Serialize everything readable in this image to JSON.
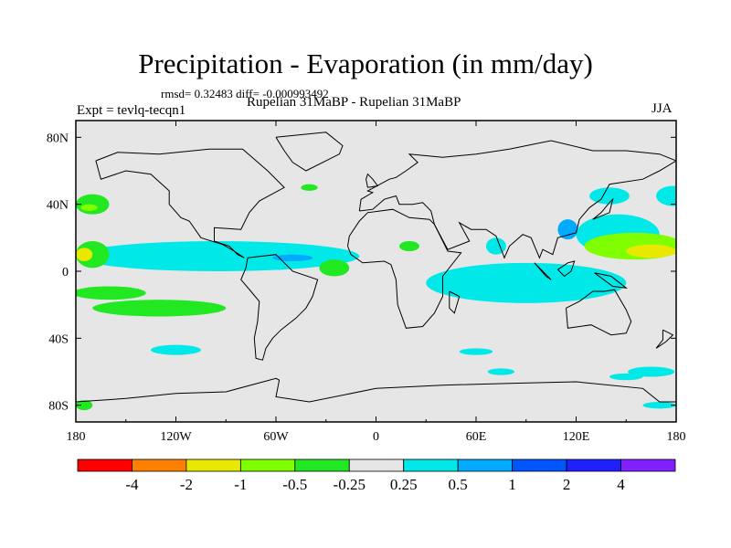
{
  "chart_data": {
    "type": "heatmap",
    "title": "Precipitation - Evaporation (in mm/day)",
    "stats_text": "rmsd= 0.32483 diff= -0.000993492",
    "left_label": "Expt = tevlq-tecqn1",
    "center_label": "Rupelian  31MaBP - Rupelian  31MaBP",
    "right_label": "JJA",
    "x_ticks": [
      "180",
      "120W",
      "60W",
      "0",
      "60E",
      "120E",
      "180"
    ],
    "x_tick_values": [
      -180,
      -120,
      -60,
      0,
      60,
      120,
      180
    ],
    "y_ticks": [
      "80N",
      "40N",
      "0",
      "40S",
      "80S"
    ],
    "y_tick_values": [
      80,
      40,
      0,
      -40,
      -80
    ],
    "xlim": [
      -180,
      180
    ],
    "ylim": [
      -90,
      90
    ],
    "colorbar": {
      "labels": [
        "-4",
        "-2",
        "-1",
        "-0.5",
        "-0.25",
        "0.25",
        "0.5",
        "1",
        "2",
        "4"
      ],
      "colors": [
        "#ff0000",
        "#ff8000",
        "#e8e800",
        "#80ff00",
        "#22e822",
        "#e6e6e6",
        "#00e8e8",
        "#00aaff",
        "#0055ff",
        "#2020ff",
        "#8020ff"
      ]
    },
    "regions": [
      {
        "name": "tropical-pacific-positive",
        "class": 8,
        "cx": -118,
        "cy": 10,
        "rx": 45,
        "ry": 4
      },
      {
        "name": "tropical-pacific-positive-outer",
        "class": 7,
        "cx": -112,
        "cy": 10,
        "rx": 60,
        "ry": 7
      },
      {
        "name": "tropical-pacific-positive-band",
        "class": 6,
        "cx": -95,
        "cy": 9,
        "rx": 85,
        "ry": 9
      },
      {
        "name": "tropical-atlantic-positive",
        "class": 6,
        "cx": -40,
        "cy": 8,
        "rx": 25,
        "ry": 4
      },
      {
        "name": "tropical-atlantic-weak",
        "class": 7,
        "cx": -50,
        "cy": 8,
        "rx": 12,
        "ry": 2
      },
      {
        "name": "indian-ocean-positive",
        "class": 8,
        "cx": 85,
        "cy": -6,
        "rx": 14,
        "ry": 5
      },
      {
        "name": "indian-ocean-positive-outer",
        "class": 7,
        "cx": 80,
        "cy": -5,
        "rx": 30,
        "ry": 8
      },
      {
        "name": "indian-ocean-band",
        "class": 6,
        "cx": 90,
        "cy": -7,
        "rx": 60,
        "ry": 12
      },
      {
        "name": "western-pacific-positive",
        "class": 7,
        "cx": 145,
        "cy": 25,
        "rx": 14,
        "ry": 6
      },
      {
        "name": "western-pacific-band",
        "class": 6,
        "cx": 145,
        "cy": 22,
        "rx": 25,
        "ry": 12
      },
      {
        "name": "north-pacific-negative",
        "class": 3,
        "cx": 155,
        "cy": 15,
        "rx": 30,
        "ry": 8
      },
      {
        "name": "north-pacific-negative-core",
        "class": 2,
        "cx": 165,
        "cy": 12,
        "rx": 15,
        "ry": 4
      },
      {
        "name": "eastern-pacific-negative",
        "class": 4,
        "cx": -170,
        "cy": 10,
        "rx": 10,
        "ry": 8
      },
      {
        "name": "eastern-pacific-negative-core",
        "class": 2,
        "cx": -175,
        "cy": 10,
        "rx": 5,
        "ry": 4
      },
      {
        "name": "south-pacific-negative",
        "class": 4,
        "cx": -130,
        "cy": -22,
        "rx": 40,
        "ry": 5
      },
      {
        "name": "south-pacific-negative-west",
        "class": 4,
        "cx": -160,
        "cy": -13,
        "rx": 22,
        "ry": 4
      },
      {
        "name": "south-atlantic-negative",
        "class": 4,
        "cx": -25,
        "cy": 2,
        "rx": 9,
        "ry": 5
      },
      {
        "name": "africa-negative",
        "class": 4,
        "cx": 20,
        "cy": 15,
        "rx": 6,
        "ry": 3
      },
      {
        "name": "north-atlantic-negative",
        "class": 4,
        "cx": -40,
        "cy": 50,
        "rx": 5,
        "ry": 2
      },
      {
        "name": "north-pacific-north-negative",
        "class": 4,
        "cx": -170,
        "cy": 40,
        "rx": 10,
        "ry": 6
      },
      {
        "name": "north-pacific-north-negative-core",
        "class": 3,
        "cx": -172,
        "cy": 38,
        "rx": 5,
        "ry": 2
      },
      {
        "name": "southern-ocean-positive-east",
        "class": 6,
        "cx": 165,
        "cy": -60,
        "rx": 14,
        "ry": 3
      },
      {
        "name": "southern-ocean-negative",
        "class": 4,
        "cx": -175,
        "cy": -80,
        "rx": 5,
        "ry": 3
      },
      {
        "name": "southern-ocean-positive",
        "class": 6,
        "cx": -120,
        "cy": -47,
        "rx": 15,
        "ry": 3
      },
      {
        "name": "southern-ocean-positive-2",
        "class": 6,
        "cx": 60,
        "cy": -48,
        "rx": 10,
        "ry": 2
      },
      {
        "name": "southern-ocean-positive-3",
        "class": 6,
        "cx": 150,
        "cy": -63,
        "rx": 10,
        "ry": 2
      },
      {
        "name": "southern-ocean-positive-4",
        "class": 6,
        "cx": 75,
        "cy": -60,
        "rx": 8,
        "ry": 2
      },
      {
        "name": "southern-ocean-positive-5",
        "class": 6,
        "cx": 170,
        "cy": -80,
        "rx": 10,
        "ry": 2
      },
      {
        "name": "asia-positive",
        "class": 7,
        "cx": 115,
        "cy": 25,
        "rx": 6,
        "ry": 6
      },
      {
        "name": "india-positive",
        "class": 6,
        "cx": 72,
        "cy": 15,
        "rx": 6,
        "ry": 5
      },
      {
        "name": "north-pacific-positive",
        "class": 6,
        "cx": 178,
        "cy": 45,
        "rx": 10,
        "ry": 6
      },
      {
        "name": "north-pacific-positive-2",
        "class": 6,
        "cx": 140,
        "cy": 45,
        "rx": 12,
        "ry": 5
      }
    ],
    "land_outlines": [
      {
        "name": "north-america",
        "points": [
          [
            -168,
            66
          ],
          [
            -155,
            71
          ],
          [
            -130,
            70
          ],
          [
            -100,
            73
          ],
          [
            -80,
            73
          ],
          [
            -65,
            60
          ],
          [
            -55,
            50
          ],
          [
            -70,
            42
          ],
          [
            -76,
            35
          ],
          [
            -81,
            25
          ],
          [
            -97,
            26
          ],
          [
            -97,
            18
          ],
          [
            -88,
            15
          ],
          [
            -83,
            10
          ],
          [
            -79,
            8
          ],
          [
            -85,
            12
          ],
          [
            -92,
            16
          ],
          [
            -105,
            20
          ],
          [
            -112,
            30
          ],
          [
            -117,
            32
          ],
          [
            -124,
            40
          ],
          [
            -124,
            48
          ],
          [
            -135,
            58
          ],
          [
            -150,
            60
          ],
          [
            -165,
            55
          ],
          [
            -168,
            66
          ]
        ]
      },
      {
        "name": "south-america",
        "points": [
          [
            -77,
            8
          ],
          [
            -60,
            10
          ],
          [
            -50,
            0
          ],
          [
            -35,
            -5
          ],
          [
            -38,
            -15
          ],
          [
            -42,
            -22
          ],
          [
            -48,
            -28
          ],
          [
            -57,
            -35
          ],
          [
            -62,
            -40
          ],
          [
            -66,
            -46
          ],
          [
            -68,
            -53
          ],
          [
            -72,
            -52
          ],
          [
            -73,
            -40
          ],
          [
            -71,
            -30
          ],
          [
            -70,
            -18
          ],
          [
            -75,
            -12
          ],
          [
            -81,
            -5
          ],
          [
            -78,
            2
          ],
          [
            -77,
            8
          ]
        ]
      },
      {
        "name": "africa",
        "points": [
          [
            -17,
            15
          ],
          [
            -16,
            21
          ],
          [
            -10,
            30
          ],
          [
            -5,
            35
          ],
          [
            10,
            37
          ],
          [
            20,
            32
          ],
          [
            32,
            31
          ],
          [
            35,
            28
          ],
          [
            43,
            12
          ],
          [
            51,
            11
          ],
          [
            40,
            -3
          ],
          [
            40,
            -15
          ],
          [
            35,
            -25
          ],
          [
            28,
            -33
          ],
          [
            18,
            -34
          ],
          [
            13,
            -20
          ],
          [
            12,
            -5
          ],
          [
            9,
            4
          ],
          [
            5,
            6
          ],
          [
            -8,
            5
          ],
          [
            -15,
            10
          ],
          [
            -17,
            15
          ]
        ]
      },
      {
        "name": "eurasia",
        "points": [
          [
            -10,
            36
          ],
          [
            -9,
            43
          ],
          [
            -2,
            47
          ],
          [
            -5,
            48
          ],
          [
            8,
            55
          ],
          [
            12,
            56
          ],
          [
            18,
            60
          ],
          [
            25,
            65
          ],
          [
            20,
            70
          ],
          [
            40,
            68
          ],
          [
            60,
            70
          ],
          [
            80,
            73
          ],
          [
            105,
            78
          ],
          [
            130,
            72
          ],
          [
            150,
            72
          ],
          [
            170,
            70
          ],
          [
            180,
            66
          ],
          [
            170,
            60
          ],
          [
            160,
            55
          ],
          [
            140,
            52
          ],
          [
            135,
            43
          ],
          [
            128,
            38
          ],
          [
            122,
            31
          ],
          [
            120,
            23
          ],
          [
            109,
            20
          ],
          [
            106,
            10
          ],
          [
            100,
            13
          ],
          [
            98,
            8
          ],
          [
            93,
            20
          ],
          [
            88,
            22
          ],
          [
            80,
            15
          ],
          [
            77,
            8
          ],
          [
            72,
            21
          ],
          [
            66,
            25
          ],
          [
            57,
            25
          ],
          [
            50,
            29
          ],
          [
            56,
            18
          ],
          [
            43,
            13
          ],
          [
            35,
            28
          ],
          [
            33,
            36
          ],
          [
            28,
            41
          ],
          [
            22,
            40
          ],
          [
            14,
            40
          ],
          [
            12,
            45
          ],
          [
            5,
            43
          ],
          [
            -2,
            37
          ],
          [
            -10,
            36
          ]
        ]
      },
      {
        "name": "australia",
        "points": [
          [
            114,
            -22
          ],
          [
            122,
            -18
          ],
          [
            130,
            -12
          ],
          [
            137,
            -12
          ],
          [
            143,
            -11
          ],
          [
            150,
            -23
          ],
          [
            153,
            -30
          ],
          [
            150,
            -37
          ],
          [
            141,
            -38
          ],
          [
            135,
            -35
          ],
          [
            129,
            -32
          ],
          [
            115,
            -34
          ],
          [
            114,
            -22
          ]
        ]
      },
      {
        "name": "greenland",
        "points": [
          [
            -60,
            80
          ],
          [
            -30,
            83
          ],
          [
            -20,
            75
          ],
          [
            -22,
            70
          ],
          [
            -42,
            60
          ],
          [
            -50,
            65
          ],
          [
            -55,
            72
          ],
          [
            -60,
            80
          ]
        ]
      },
      {
        "name": "antarctica",
        "points": [
          [
            -180,
            -78
          ],
          [
            -150,
            -76
          ],
          [
            -120,
            -73
          ],
          [
            -90,
            -72
          ],
          [
            -60,
            -64
          ],
          [
            -58,
            -65
          ],
          [
            -60,
            -75
          ],
          [
            -40,
            -78
          ],
          [
            0,
            -70
          ],
          [
            40,
            -68
          ],
          [
            80,
            -67
          ],
          [
            120,
            -66
          ],
          [
            160,
            -70
          ],
          [
            170,
            -78
          ],
          [
            180,
            -78
          ]
        ]
      },
      {
        "name": "madagascar",
        "points": [
          [
            44,
            -12
          ],
          [
            50,
            -15
          ],
          [
            47,
            -25
          ],
          [
            44,
            -22
          ],
          [
            44,
            -12
          ]
        ]
      },
      {
        "name": "uk",
        "points": [
          [
            -5,
            50
          ],
          [
            1,
            51
          ],
          [
            -2,
            55
          ],
          [
            -5,
            58
          ],
          [
            -6,
            55
          ],
          [
            -5,
            50
          ]
        ]
      },
      {
        "name": "japan",
        "points": [
          [
            130,
            31
          ],
          [
            140,
            35
          ],
          [
            142,
            43
          ],
          [
            140,
            41
          ],
          [
            135,
            35
          ],
          [
            130,
            31
          ]
        ]
      },
      {
        "name": "borneo",
        "points": [
          [
            109,
            1
          ],
          [
            115,
            5
          ],
          [
            119,
            6
          ],
          [
            117,
            0
          ],
          [
            113,
            -3
          ],
          [
            109,
            1
          ]
        ]
      },
      {
        "name": "sumatra",
        "points": [
          [
            95,
            5
          ],
          [
            105,
            -5
          ],
          [
            102,
            -3
          ],
          [
            95,
            5
          ]
        ]
      },
      {
        "name": "new-guinea",
        "points": [
          [
            131,
            -1
          ],
          [
            141,
            -3
          ],
          [
            150,
            -10
          ],
          [
            142,
            -9
          ],
          [
            131,
            -1
          ]
        ]
      },
      {
        "name": "new-zealand",
        "points": [
          [
            172,
            -35
          ],
          [
            178,
            -38
          ],
          [
            174,
            -42
          ],
          [
            168,
            -46
          ],
          [
            172,
            -41
          ],
          [
            172,
            -35
          ]
        ]
      }
    ]
  }
}
